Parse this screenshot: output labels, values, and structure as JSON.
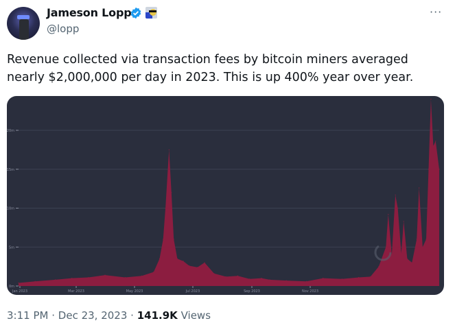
{
  "author": {
    "name": "Jameson Lopp",
    "handle": "@lopp",
    "verified": true,
    "badge_color": "#1d9bf0",
    "affiliate_icon": "sunglasses-emoji-icon"
  },
  "menu_label": "···",
  "tweet_text": "Revenue collected via transaction fees by bitcoin miners averaged nearly $2,000,000 per day in 2023. This is up 400% year over year.",
  "chart_data": {
    "type": "area",
    "title": "",
    "xlabel": "",
    "ylabel": "",
    "y_ticks": [
      "0m",
      "5m",
      "10m",
      "15m",
      "20m"
    ],
    "y_tick_values": [
      0,
      5,
      10,
      15,
      20
    ],
    "ylim": [
      0,
      25
    ],
    "x_ticks": [
      "Jan 2023",
      "Mar 2023",
      "May 2023",
      "Jul 2023",
      "Sep 2023",
      "Nov 2023"
    ],
    "grid": true,
    "background": "#2a2e3d",
    "fill_color": "#8c1d40",
    "series": [
      {
        "x": [
          "2023-01-01",
          "2023-01-15",
          "2023-02-01",
          "2023-02-15",
          "2023-03-01",
          "2023-03-15",
          "2023-04-01",
          "2023-04-15",
          "2023-04-25",
          "2023-04-30",
          "2023-05-03",
          "2023-05-05",
          "2023-05-08",
          "2023-05-10",
          "2023-05-12",
          "2023-05-15",
          "2023-05-20",
          "2023-05-25",
          "2023-06-01",
          "2023-06-07",
          "2023-06-15",
          "2023-06-25",
          "2023-07-05",
          "2023-07-15",
          "2023-07-25",
          "2023-08-01",
          "2023-08-15",
          "2023-09-01",
          "2023-09-15",
          "2023-10-01",
          "2023-10-15",
          "2023-10-25",
          "2023-11-01",
          "2023-11-07",
          "2023-11-09",
          "2023-11-12",
          "2023-11-15",
          "2023-11-17",
          "2023-11-20",
          "2023-11-22",
          "2023-11-25",
          "2023-11-29",
          "2023-12-03",
          "2023-12-05",
          "2023-12-08",
          "2023-12-11",
          "2023-12-13",
          "2023-12-15",
          "2023-12-17",
          "2023-12-19",
          "2023-12-22"
        ],
        "values": [
          0.4,
          0.6,
          0.8,
          1.0,
          1.1,
          1.4,
          1.1,
          1.3,
          1.8,
          3.5,
          6,
          10,
          17.5,
          12,
          6,
          3.5,
          3.2,
          2.6,
          2.4,
          3.0,
          1.6,
          1.2,
          1.3,
          0.9,
          1.0,
          0.8,
          0.7,
          0.6,
          1.0,
          0.9,
          1.1,
          1.2,
          2.5,
          5,
          9.2,
          4,
          11.7,
          10,
          4.2,
          8.3,
          3.5,
          3.0,
          6,
          12.6,
          5,
          6,
          15,
          24,
          18,
          18.6,
          15
        ]
      }
    ]
  },
  "footer": {
    "time": "3:11 PM",
    "date": "Dec 23, 2023",
    "separator": "·",
    "views_count": "141.9K",
    "views_label": "Views"
  }
}
